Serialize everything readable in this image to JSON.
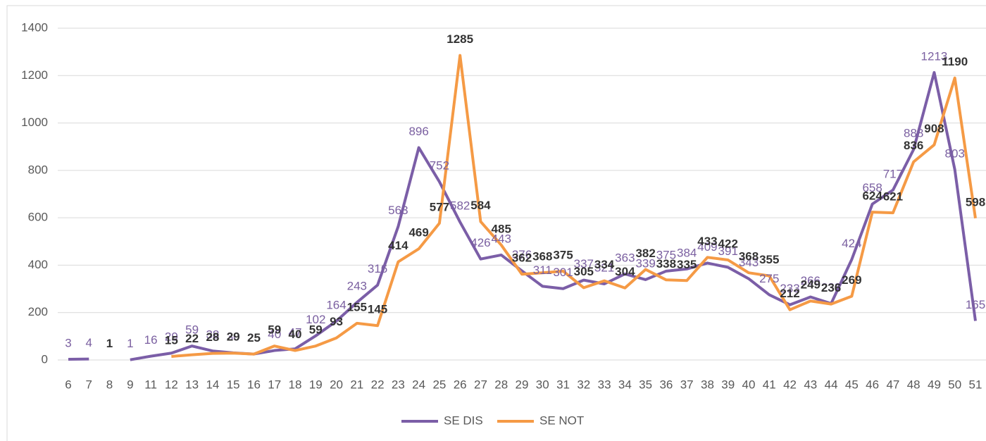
{
  "chart_data": {
    "type": "line",
    "categories": [
      "6",
      "7",
      "8",
      "9",
      "11",
      "12",
      "13",
      "14",
      "15",
      "16",
      "17",
      "18",
      "19",
      "20",
      "21",
      "22",
      "23",
      "24",
      "25",
      "26",
      "27",
      "28",
      "29",
      "30",
      "31",
      "32",
      "33",
      "34",
      "35",
      "36",
      "37",
      "38",
      "39",
      "40",
      "41",
      "42",
      "43",
      "44",
      "45",
      "46",
      "47",
      "48",
      "49",
      "50",
      "51"
    ],
    "series": [
      {
        "name": "SE DIS",
        "color": "#7b5ea7",
        "values": [
          3,
          4,
          null,
          1,
          16,
          29,
          59,
          38,
          30,
          25,
          40,
          47,
          102,
          164,
          243,
          316,
          563,
          896,
          752,
          582,
          426,
          443,
          376,
          311,
          301,
          337,
          321,
          363,
          339,
          375,
          384,
          409,
          391,
          343,
          275,
          233,
          266,
          238,
          424,
          658,
          717,
          888,
          1213,
          803,
          165
        ]
      },
      {
        "name": "SE NOT",
        "color": "#f59a45",
        "values": [
          null,
          null,
          1,
          null,
          null,
          15,
          22,
          28,
          29,
          25,
          59,
          40,
          59,
          93,
          155,
          145,
          414,
          469,
          577,
          1285,
          584,
          485,
          362,
          368,
          375,
          305,
          334,
          304,
          382,
          338,
          335,
          433,
          422,
          368,
          355,
          212,
          249,
          236,
          269,
          624,
          621,
          836,
          908,
          1190,
          598
        ]
      }
    ],
    "ylim": [
      0,
      1400
    ],
    "yticks": [
      0,
      200,
      400,
      600,
      800,
      1000,
      1200,
      1400
    ],
    "grid": true,
    "legend": "bottom"
  }
}
